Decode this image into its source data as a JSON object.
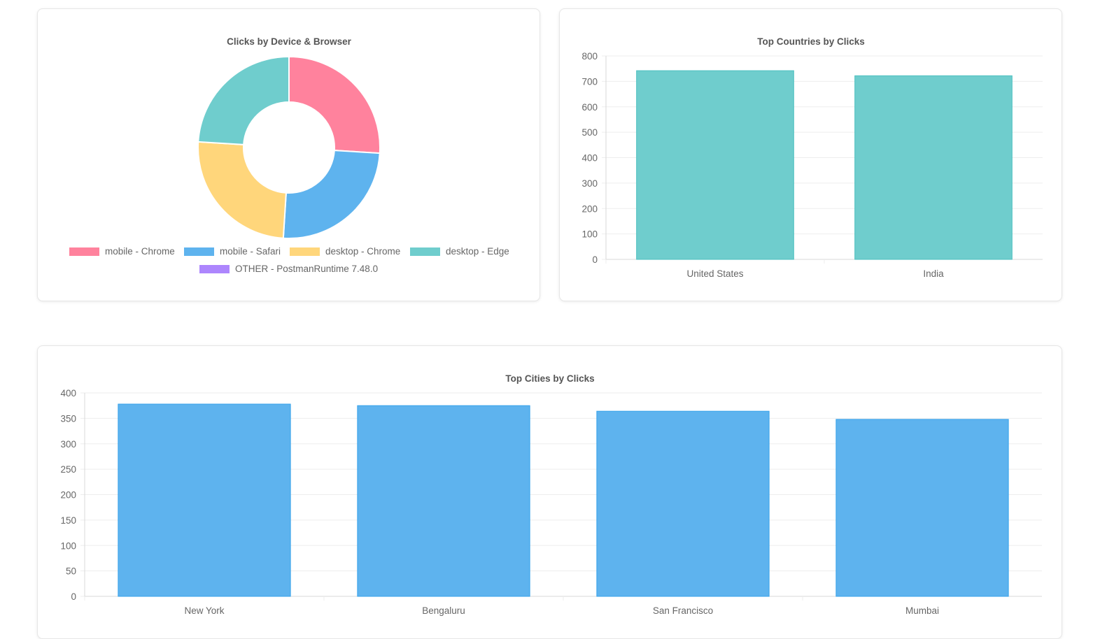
{
  "chart_data": [
    {
      "id": "device-browser",
      "type": "pie",
      "title": "Clicks by Device & Browser",
      "labels": [
        "mobile - Chrome",
        "mobile - Safari",
        "desktop - Chrome",
        "desktop - Edge",
        "OTHER - PostmanRuntime 7.48.0"
      ],
      "values": [
        26,
        25,
        25,
        24,
        0
      ],
      "colors": [
        "#ff829d",
        "#5eb3ee",
        "#ffd67b",
        "#6fcdcd",
        "#ad86fd"
      ],
      "legend": "bottom"
    },
    {
      "id": "countries",
      "type": "bar",
      "title": "Top Countries by Clicks",
      "categories": [
        "United States",
        "India"
      ],
      "values": [
        742,
        722
      ],
      "ylim": [
        0,
        800
      ],
      "yticks": [
        "800",
        "700",
        "600",
        "500",
        "400",
        "300",
        "200",
        "100",
        "0"
      ],
      "color": "#6fcdcd",
      "border_color": "#4bc0c0",
      "grid": true
    },
    {
      "id": "cities",
      "type": "bar",
      "title": "Top Cities by Clicks",
      "categories": [
        "New York",
        "Bengaluru",
        "San Francisco",
        "Mumbai"
      ],
      "values": [
        378,
        375,
        364,
        348
      ],
      "ylim": [
        0,
        400
      ],
      "yticks": [
        "400",
        "350",
        "300",
        "250",
        "200",
        "150",
        "100",
        "50",
        "0"
      ],
      "color": "#5eb3ee",
      "border_color": "#36a2eb",
      "grid": true
    }
  ]
}
